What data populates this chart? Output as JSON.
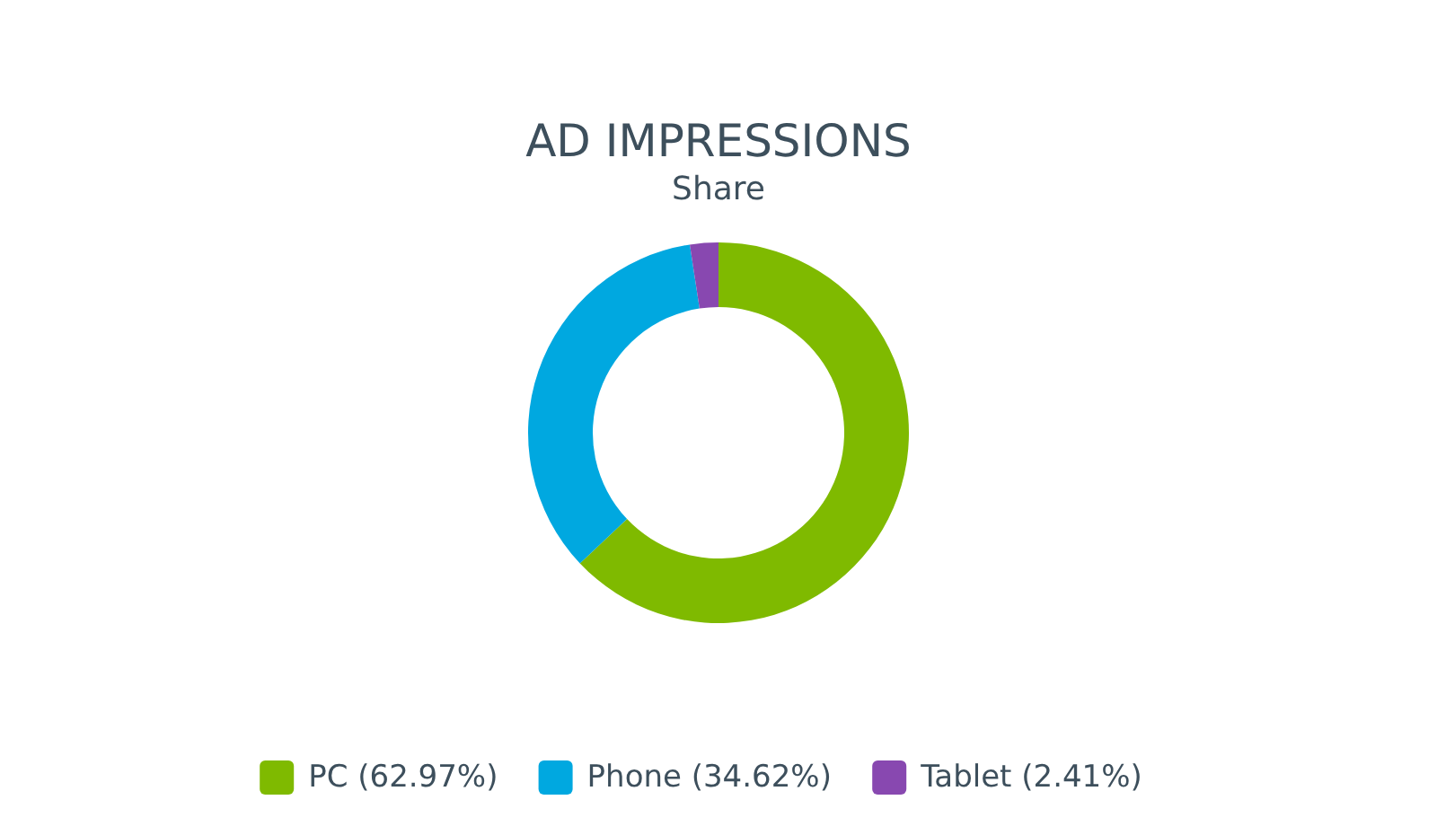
{
  "chart_data": {
    "type": "donut",
    "title": "AD IMPRESSIONS",
    "subtitle": "Share",
    "categories": [
      "PC (62.97%)",
      "Phone (34.62%)",
      "Tablet (2.41%)"
    ],
    "values": [
      62.97,
      34.62,
      2.41
    ],
    "colors": [
      "#7fba00",
      "#00a8e0",
      "#8848b0"
    ],
    "legend": "bottom"
  }
}
